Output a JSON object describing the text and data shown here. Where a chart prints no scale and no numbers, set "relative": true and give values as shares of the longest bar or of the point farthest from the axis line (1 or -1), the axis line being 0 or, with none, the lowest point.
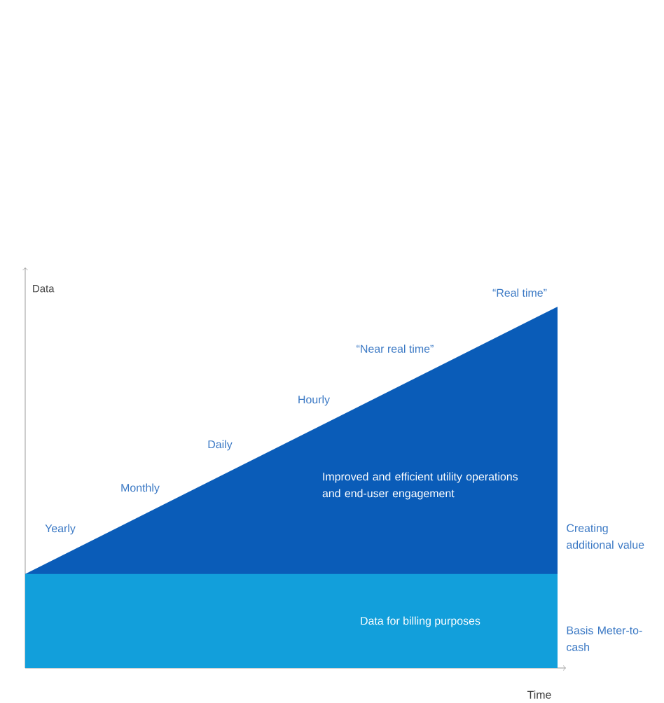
{
  "chart_data": {
    "type": "area",
    "relative": true,
    "ylabel": "Data",
    "categories": [
      null,
      null
    ],
    "series": [
      {
        "color": "#0a5cb8",
        "values": [
          0.26,
          1
        ]
      },
      {
        "color": "#129fdb",
        "values": [
          0.26,
          0.26
        ]
      }
    ],
    "annotations": [
      "Yearly",
      "Monthly",
      "Daily",
      "Hourly",
      "“Near real time”",
      "“Real time”",
      "Improved and efficient utility operations and end-user engagement",
      "Data for billing purposes",
      "Creating additional value",
      "Basis Meter-to-cash",
      "Time"
    ]
  }
}
